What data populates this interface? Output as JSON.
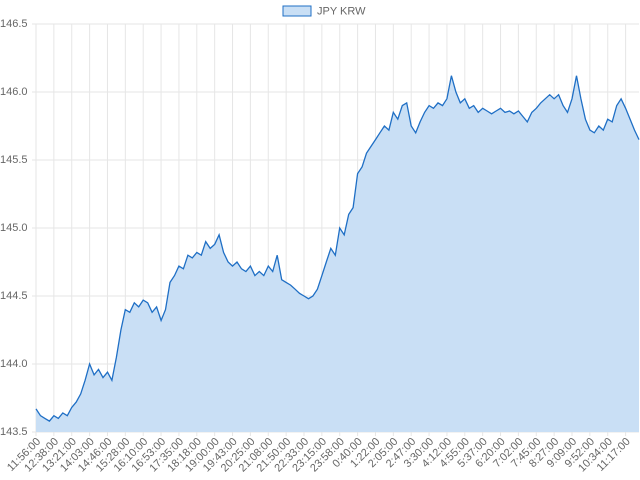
{
  "chart_data": {
    "type": "line",
    "fill": true,
    "categories": [
      "11:56:00",
      null,
      null,
      null,
      "12:38:00",
      null,
      null,
      null,
      "13:21:00",
      null,
      null,
      null,
      "14:03:00",
      null,
      null,
      null,
      "14:46:00",
      null,
      null,
      null,
      "15:28:00",
      null,
      null,
      null,
      "16:10:00",
      null,
      null,
      null,
      "16:53:00",
      null,
      null,
      null,
      "17:35:00",
      null,
      null,
      null,
      "18:18:00",
      null,
      null,
      null,
      "19:00:00",
      null,
      null,
      null,
      "19:43:00",
      null,
      null,
      null,
      "20:25:00",
      null,
      null,
      null,
      "21:08:00",
      null,
      null,
      null,
      "21:50:00",
      null,
      null,
      null,
      "22:33:00",
      null,
      null,
      null,
      "23:15:00",
      null,
      null,
      null,
      "23:58:00",
      null,
      null,
      null,
      "0:40:00",
      null,
      null,
      null,
      "1:22:00",
      null,
      null,
      null,
      "2:05:00",
      null,
      null,
      null,
      "2:47:00",
      null,
      null,
      null,
      "3:30:00",
      null,
      null,
      null,
      "4:12:00",
      null,
      null,
      null,
      "4:55:00",
      null,
      null,
      null,
      "5:37:00",
      null,
      null,
      null,
      "6:20:00",
      null,
      null,
      null,
      "7:02:00",
      null,
      null,
      null,
      "7:45:00",
      null,
      null,
      null,
      "8:27:00",
      null,
      null,
      null,
      "9:09:00",
      null,
      null,
      null,
      "9:52:00",
      null,
      null,
      null,
      "10:34:00",
      null,
      null,
      null,
      "11:17:00",
      null,
      null,
      null
    ],
    "series": [
      {
        "name": "JPY KRW",
        "color": "#1f6fc5",
        "fill_color": "#c9dff5",
        "values": [
          143.67,
          143.62,
          143.6,
          143.58,
          143.62,
          143.6,
          143.64,
          143.62,
          143.68,
          143.72,
          143.78,
          143.88,
          144.0,
          143.92,
          143.96,
          143.9,
          143.94,
          143.88,
          144.05,
          144.25,
          144.4,
          144.38,
          144.45,
          144.42,
          144.47,
          144.45,
          144.38,
          144.42,
          144.32,
          144.4,
          144.6,
          144.65,
          144.72,
          144.7,
          144.8,
          144.78,
          144.82,
          144.8,
          144.9,
          144.85,
          144.88,
          144.95,
          144.82,
          144.75,
          144.72,
          144.75,
          144.7,
          144.68,
          144.72,
          144.65,
          144.68,
          144.65,
          144.72,
          144.68,
          144.8,
          144.62,
          144.6,
          144.58,
          144.55,
          144.52,
          144.5,
          144.48,
          144.5,
          144.55,
          144.65,
          144.75,
          144.85,
          144.8,
          145.0,
          144.95,
          145.1,
          145.15,
          145.4,
          145.45,
          145.55,
          145.6,
          145.65,
          145.7,
          145.75,
          145.72,
          145.85,
          145.8,
          145.9,
          145.92,
          145.75,
          145.7,
          145.78,
          145.85,
          145.9,
          145.88,
          145.92,
          145.9,
          145.95,
          146.12,
          146.0,
          145.92,
          145.95,
          145.88,
          145.9,
          145.85,
          145.88,
          145.86,
          145.84,
          145.86,
          145.88,
          145.85,
          145.86,
          145.84,
          145.86,
          145.82,
          145.78,
          145.85,
          145.88,
          145.92,
          145.95,
          145.98,
          145.95,
          145.98,
          145.9,
          145.85,
          145.95,
          146.12,
          145.95,
          145.8,
          145.72,
          145.7,
          145.75,
          145.72,
          145.8,
          145.78,
          145.9,
          145.95,
          145.88,
          145.8,
          145.72,
          145.65
        ]
      }
    ],
    "ylim": [
      143.5,
      146.5
    ],
    "yticks": [
      143.5,
      {
        "value": 144.0,
        "label": "144.0"
      },
      144.5,
      {
        "value": 145.0,
        "label": "145.0"
      },
      145.5,
      {
        "value": 146.0,
        "label": "146.0"
      },
      146.5
    ],
    "grid": true,
    "legend": "top"
  }
}
